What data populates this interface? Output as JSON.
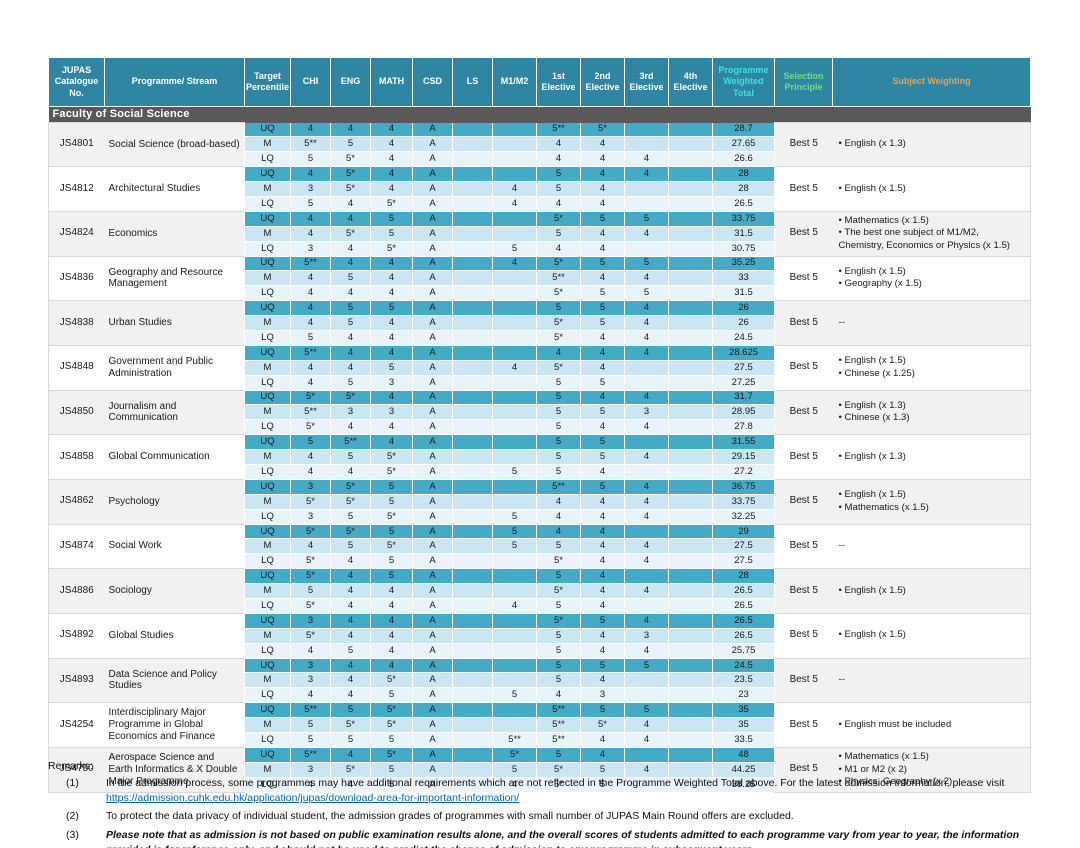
{
  "colors": {
    "header_teal": "#2e86a2",
    "uq_row": "#44abc7",
    "m_row": "#c9e6f2",
    "lq_row": "#e8f4fa",
    "faculty_bar": "#595959",
    "total_header_text": "#3fe2d2",
    "selection_header_text": "#6fe26f",
    "weighting_header_text": "#eda04f",
    "link_blue": "#0563c1",
    "group_gray": "#f1f1f1"
  },
  "table": {
    "headers": {
      "no": "JUPAS Catalogue No.",
      "programme": "Programme/ Stream",
      "target": "Target Percentile",
      "chi": "CHI",
      "eng": "ENG",
      "math": "MATH",
      "csd": "CSD",
      "ls": "LS",
      "m1m2": "M1/M2",
      "e1": "1st Elective",
      "e2": "2nd Elective",
      "e3": "3rd Elective",
      "e4": "4th Elective",
      "total": "Programme Weighted Total",
      "selection": "Selection Principle",
      "weighting": "Subject Weighting"
    },
    "faculty": "Faculty of Social Science",
    "programmes": [
      {
        "no": "JS4801",
        "name": "Social Science (broad-based)",
        "selection": "Best 5",
        "weighting": [
          "English (x 1.3)"
        ],
        "rows": [
          {
            "target": "UQ",
            "grades": [
              "4",
              "4",
              "4",
              "A",
              "",
              "",
              "5**",
              "5*",
              "",
              ""
            ],
            "total": "28.7"
          },
          {
            "target": "M",
            "grades": [
              "5**",
              "5",
              "4",
              "A",
              "",
              "",
              "4",
              "4",
              "",
              ""
            ],
            "total": "27.65"
          },
          {
            "target": "LQ",
            "grades": [
              "5",
              "5*",
              "4",
              "A",
              "",
              "",
              "4",
              "4",
              "4",
              ""
            ],
            "total": "26.6"
          }
        ]
      },
      {
        "no": "JS4812",
        "name": "Architectural Studies",
        "selection": "Best 5",
        "weighting": [
          "English (x 1.5)"
        ],
        "rows": [
          {
            "target": "UQ",
            "grades": [
              "4",
              "5*",
              "4",
              "A",
              "",
              "",
              "5",
              "4",
              "4",
              ""
            ],
            "total": "28"
          },
          {
            "target": "M",
            "grades": [
              "3",
              "5*",
              "4",
              "A",
              "",
              "4",
              "5",
              "4",
              "",
              ""
            ],
            "total": "28"
          },
          {
            "target": "LQ",
            "grades": [
              "5",
              "4",
              "5*",
              "A",
              "",
              "4",
              "4",
              "4",
              "",
              ""
            ],
            "total": "26.5"
          }
        ]
      },
      {
        "no": "JS4824",
        "name": "Economics",
        "selection": "Best 5",
        "weighting": [
          "Mathematics (x 1.5)",
          "The best one subject of M1/M2, Chemistry, Economics or Physics (x 1.5)"
        ],
        "rows": [
          {
            "target": "UQ",
            "grades": [
              "4",
              "4",
              "5",
              "A",
              "",
              "",
              "5*",
              "5",
              "5",
              ""
            ],
            "total": "33.75"
          },
          {
            "target": "M",
            "grades": [
              "4",
              "5*",
              "5",
              "A",
              "",
              "",
              "5",
              "4",
              "4",
              ""
            ],
            "total": "31.5"
          },
          {
            "target": "LQ",
            "grades": [
              "3",
              "4",
              "5*",
              "A",
              "",
              "5",
              "4",
              "4",
              "",
              ""
            ],
            "total": "30.75"
          }
        ]
      },
      {
        "no": "JS4836",
        "name": "Geography and Resource Management",
        "selection": "Best 5",
        "weighting": [
          "English (x 1.5)",
          "Geography (x 1.5)"
        ],
        "rows": [
          {
            "target": "UQ",
            "grades": [
              "5**",
              "4",
              "4",
              "A",
              "",
              "4",
              "5*",
              "5",
              "5",
              ""
            ],
            "total": "35.25"
          },
          {
            "target": "M",
            "grades": [
              "4",
              "5",
              "4",
              "A",
              "",
              "",
              "5**",
              "4",
              "4",
              ""
            ],
            "total": "33"
          },
          {
            "target": "LQ",
            "grades": [
              "4",
              "4",
              "4",
              "A",
              "",
              "",
              "5*",
              "5",
              "5",
              ""
            ],
            "total": "31.5"
          }
        ]
      },
      {
        "no": "JS4838",
        "name": "Urban Studies",
        "selection": "Best 5",
        "weighting": [
          "--"
        ],
        "rows": [
          {
            "target": "UQ",
            "grades": [
              "4",
              "5",
              "5",
              "A",
              "",
              "",
              "5",
              "5",
              "4",
              ""
            ],
            "total": "26"
          },
          {
            "target": "M",
            "grades": [
              "4",
              "5",
              "4",
              "A",
              "",
              "",
              "5*",
              "5",
              "4",
              ""
            ],
            "total": "26"
          },
          {
            "target": "LQ",
            "grades": [
              "5",
              "4",
              "4",
              "A",
              "",
              "",
              "5*",
              "4",
              "4",
              ""
            ],
            "total": "24.5"
          }
        ]
      },
      {
        "no": "JS4848",
        "name": "Government and Public Administration",
        "selection": "Best 5",
        "weighting": [
          "English (x 1.5)",
          "Chinese (x 1.25)"
        ],
        "rows": [
          {
            "target": "UQ",
            "grades": [
              "5**",
              "4",
              "4",
              "A",
              "",
              "",
              "4",
              "4",
              "4",
              ""
            ],
            "total": "28.625"
          },
          {
            "target": "M",
            "grades": [
              "4",
              "4",
              "5",
              "A",
              "",
              "4",
              "5*",
              "4",
              "",
              ""
            ],
            "total": "27.5"
          },
          {
            "target": "LQ",
            "grades": [
              "4",
              "5",
              "3",
              "A",
              "",
              "",
              "5",
              "5",
              "",
              ""
            ],
            "total": "27.25"
          }
        ]
      },
      {
        "no": "JS4850",
        "name": "Journalism and Communication",
        "selection": "Best 5",
        "weighting": [
          "English (x 1.3)",
          "Chinese (x 1.3)"
        ],
        "rows": [
          {
            "target": "UQ",
            "grades": [
              "5*",
              "5*",
              "4",
              "A",
              "",
              "",
              "5",
              "4",
              "4",
              ""
            ],
            "total": "31.7"
          },
          {
            "target": "M",
            "grades": [
              "5**",
              "3",
              "3",
              "A",
              "",
              "",
              "5",
              "5",
              "3",
              ""
            ],
            "total": "28.95"
          },
          {
            "target": "LQ",
            "grades": [
              "5*",
              "4",
              "4",
              "A",
              "",
              "",
              "5",
              "4",
              "4",
              ""
            ],
            "total": "27.8"
          }
        ]
      },
      {
        "no": "JS4858",
        "name": "Global Communication",
        "selection": "Best 5",
        "weighting": [
          "English (x 1.3)"
        ],
        "rows": [
          {
            "target": "UQ",
            "grades": [
              "5",
              "5**",
              "4",
              "A",
              "",
              "",
              "5",
              "5",
              "",
              ""
            ],
            "total": "31.55"
          },
          {
            "target": "M",
            "grades": [
              "4",
              "5",
              "5*",
              "A",
              "",
              "",
              "5",
              "5",
              "4",
              ""
            ],
            "total": "29.15"
          },
          {
            "target": "LQ",
            "grades": [
              "4",
              "4",
              "5*",
              "A",
              "",
              "5",
              "5",
              "4",
              "",
              ""
            ],
            "total": "27.2"
          }
        ]
      },
      {
        "no": "JS4862",
        "name": "Psychology",
        "selection": "Best 5",
        "weighting": [
          "English (x 1.5)",
          "Mathematics (x 1.5)"
        ],
        "rows": [
          {
            "target": "UQ",
            "grades": [
              "3",
              "5*",
              "5",
              "A",
              "",
              "",
              "5**",
              "5",
              "4",
              ""
            ],
            "total": "36.75"
          },
          {
            "target": "M",
            "grades": [
              "5*",
              "5*",
              "5",
              "A",
              "",
              "",
              "4",
              "4",
              "4",
              ""
            ],
            "total": "33.75"
          },
          {
            "target": "LQ",
            "grades": [
              "3",
              "5",
              "5*",
              "A",
              "",
              "5",
              "4",
              "4",
              "4",
              ""
            ],
            "total": "32.25"
          }
        ]
      },
      {
        "no": "JS4874",
        "name": "Social Work",
        "selection": "Best 5",
        "weighting": [
          "--"
        ],
        "rows": [
          {
            "target": "UQ",
            "grades": [
              "5*",
              "5*",
              "5",
              "A",
              "",
              "5",
              "4",
              "4",
              "",
              ""
            ],
            "total": "29"
          },
          {
            "target": "M",
            "grades": [
              "4",
              "5",
              "5*",
              "A",
              "",
              "5",
              "5",
              "4",
              "4",
              ""
            ],
            "total": "27.5"
          },
          {
            "target": "LQ",
            "grades": [
              "5*",
              "4",
              "5",
              "A",
              "",
              "",
              "5*",
              "4",
              "4",
              ""
            ],
            "total": "27.5"
          }
        ]
      },
      {
        "no": "JS4886",
        "name": "Sociology",
        "selection": "Best 5",
        "weighting": [
          "English (x 1.5)"
        ],
        "rows": [
          {
            "target": "UQ",
            "grades": [
              "5*",
              "4",
              "5",
              "A",
              "",
              "",
              "5",
              "4",
              "",
              ""
            ],
            "total": "28"
          },
          {
            "target": "M",
            "grades": [
              "5",
              "4",
              "4",
              "A",
              "",
              "",
              "5*",
              "4",
              "4",
              ""
            ],
            "total": "26.5"
          },
          {
            "target": "LQ",
            "grades": [
              "5*",
              "4",
              "4",
              "A",
              "",
              "4",
              "5",
              "4",
              "",
              ""
            ],
            "total": "26.5"
          }
        ]
      },
      {
        "no": "JS4892",
        "name": "Global Studies",
        "selection": "Best 5",
        "weighting": [
          "English (x 1.5)"
        ],
        "rows": [
          {
            "target": "UQ",
            "grades": [
              "3",
              "4",
              "4",
              "A",
              "",
              "",
              "5*",
              "5",
              "4",
              ""
            ],
            "total": "26.5"
          },
          {
            "target": "M",
            "grades": [
              "5*",
              "4",
              "4",
              "A",
              "",
              "",
              "5",
              "4",
              "3",
              ""
            ],
            "total": "26.5"
          },
          {
            "target": "LQ",
            "grades": [
              "4",
              "5",
              "4",
              "A",
              "",
              "",
              "5",
              "4",
              "4",
              ""
            ],
            "total": "25.75"
          }
        ]
      },
      {
        "no": "JS4893",
        "name": "Data Science and Policy Studies",
        "selection": "Best 5",
        "weighting": [
          "--"
        ],
        "rows": [
          {
            "target": "UQ",
            "grades": [
              "3",
              "4",
              "4",
              "A",
              "",
              "",
              "5",
              "5",
              "5",
              ""
            ],
            "total": "24.5"
          },
          {
            "target": "M",
            "grades": [
              "3",
              "4",
              "5*",
              "A",
              "",
              "",
              "5",
              "4",
              "",
              ""
            ],
            "total": "23.5"
          },
          {
            "target": "LQ",
            "grades": [
              "4",
              "4",
              "5",
              "A",
              "",
              "5",
              "4",
              "3",
              "",
              ""
            ],
            "total": "23"
          }
        ]
      },
      {
        "no": "JS4254",
        "name": "Interdisciplinary Major Programme in Global Economics and Finance",
        "selection": "Best 5",
        "weighting": [
          "English must be included"
        ],
        "rows": [
          {
            "target": "UQ",
            "grades": [
              "5**",
              "5",
              "5*",
              "A",
              "",
              "",
              "5**",
              "5",
              "5",
              ""
            ],
            "total": "35"
          },
          {
            "target": "M",
            "grades": [
              "5",
              "5*",
              "5*",
              "A",
              "",
              "",
              "5**",
              "5*",
              "4",
              ""
            ],
            "total": "35"
          },
          {
            "target": "LQ",
            "grades": [
              "5",
              "5",
              "5",
              "A",
              "",
              "5**",
              "5**",
              "4",
              "4",
              ""
            ],
            "total": "33.5"
          }
        ]
      },
      {
        "no": "JS4750",
        "name": "Aerospace Science and Earth Informatics & X Double Major Programme",
        "selection": "Best 5",
        "weighting": [
          "Mathematics (x 1.5)",
          "M1 or M2 (x 2)",
          "Physics, Geography (x 2)"
        ],
        "rows": [
          {
            "target": "UQ",
            "grades": [
              "5**",
              "4",
              "5*",
              "A",
              "",
              "5*",
              "5",
              "4",
              "",
              ""
            ],
            "total": "48"
          },
          {
            "target": "M",
            "grades": [
              "3",
              "5*",
              "5",
              "A",
              "",
              "5",
              "5*",
              "5",
              "4",
              ""
            ],
            "total": "44.25"
          },
          {
            "target": "LQ",
            "grades": [
              "4",
              "4",
              "5",
              "A",
              "",
              "4",
              "5*",
              "5",
              "",
              ""
            ],
            "total": "38.25"
          }
        ]
      }
    ]
  },
  "remarks": {
    "label": "Remarks:",
    "items": [
      {
        "num": "(1)",
        "text": "In the admission process, some programmes may have additional requirements which are not reflected in the Programme Weighted Total above. For the latest admission information, please visit",
        "link": "https://admission.cuhk.edu.hk/application/jupas/download-area-for-important-information/"
      },
      {
        "num": "(2)",
        "text": "To protect the data privacy of individual student, the admission grades of programmes with small number of JUPAS Main Round offers are excluded."
      },
      {
        "num": "(3)",
        "text": "Please note that as admission is not based on public examination results alone, and the overall scores of students admitted to each programme vary from year to year, the information provided is for reference only,  and should not be used to predict the chance of admission to any programme in subsequent years.",
        "emphasis": true
      }
    ]
  }
}
